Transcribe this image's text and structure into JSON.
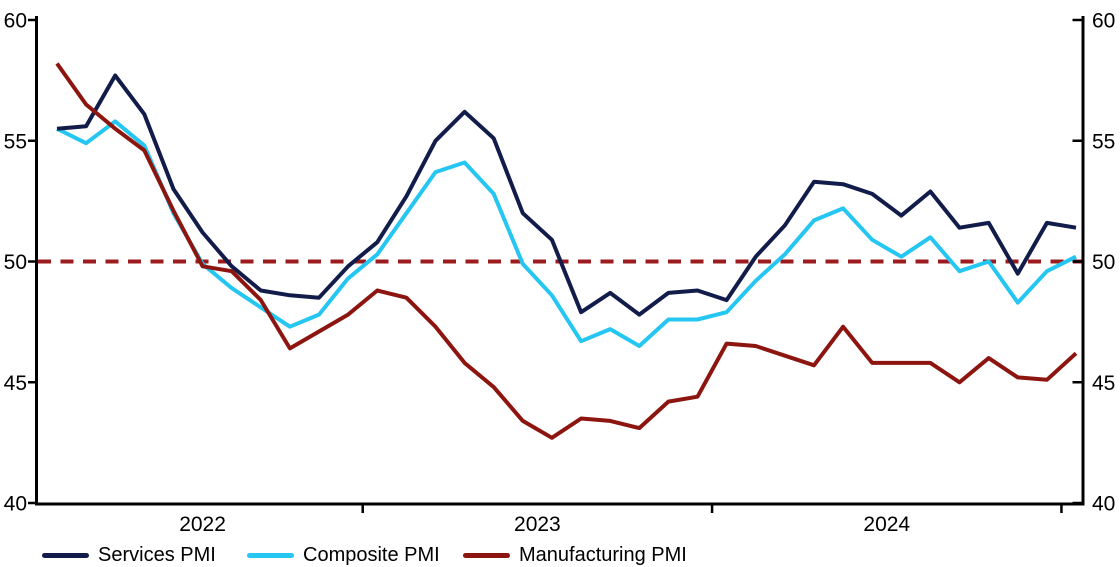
{
  "chart_data": {
    "type": "line",
    "title": "",
    "x_months": [
      "2022-02",
      "2022-03",
      "2022-04",
      "2022-05",
      "2022-06",
      "2022-07",
      "2022-08",
      "2022-09",
      "2022-10",
      "2022-11",
      "2022-12",
      "2023-01",
      "2023-02",
      "2023-03",
      "2023-04",
      "2023-05",
      "2023-06",
      "2023-07",
      "2023-08",
      "2023-09",
      "2023-10",
      "2023-11",
      "2023-12",
      "2024-01",
      "2024-02",
      "2024-03",
      "2024-04",
      "2024-05",
      "2024-06",
      "2024-07",
      "2024-08",
      "2024-09",
      "2024-10",
      "2024-11",
      "2024-12",
      "2025-01"
    ],
    "x_axis_year_labels": [
      "2022",
      "2023",
      "2024"
    ],
    "series": [
      {
        "name": "Services PMI",
        "color": "#121c4a",
        "values": [
          55.5,
          55.6,
          57.7,
          56.1,
          53.0,
          51.2,
          49.8,
          48.8,
          48.6,
          48.5,
          49.8,
          50.8,
          52.7,
          55.0,
          56.2,
          55.1,
          52.0,
          50.9,
          47.9,
          48.7,
          47.8,
          48.7,
          48.8,
          48.4,
          50.2,
          51.5,
          53.3,
          53.2,
          52.8,
          51.9,
          52.9,
          51.4,
          51.6,
          49.5,
          51.6,
          51.4
        ]
      },
      {
        "name": "Composite PMI",
        "color": "#25c6f2",
        "values": [
          55.5,
          54.9,
          55.8,
          54.8,
          52.0,
          49.9,
          48.9,
          48.1,
          47.3,
          47.8,
          49.3,
          50.3,
          52.0,
          53.7,
          54.1,
          52.8,
          49.9,
          48.6,
          46.7,
          47.2,
          46.5,
          47.6,
          47.6,
          47.9,
          49.2,
          50.3,
          51.7,
          52.2,
          50.9,
          50.2,
          51.0,
          49.6,
          50.0,
          48.3,
          49.6,
          50.2
        ]
      },
      {
        "name": "Manufacturing PMI",
        "color": "#8d1510",
        "values": [
          58.2,
          56.5,
          55.5,
          54.6,
          52.1,
          49.8,
          49.6,
          48.4,
          46.4,
          47.1,
          47.8,
          48.8,
          48.5,
          47.3,
          45.8,
          44.8,
          43.4,
          42.7,
          43.5,
          43.4,
          43.1,
          44.2,
          44.4,
          46.6,
          46.5,
          46.1,
          45.7,
          47.3,
          45.8,
          45.8,
          45.8,
          45.0,
          46.0,
          45.2,
          45.1,
          46.2
        ]
      }
    ],
    "reference_line": {
      "value": 50,
      "color": "#9c1b1c",
      "style": "dashed"
    },
    "y_axis": {
      "min": 40,
      "max": 60,
      "ticks": [
        40,
        45,
        50,
        55,
        60
      ],
      "sides": [
        "left",
        "right"
      ]
    },
    "x_axis": {
      "tick_style": "year-boundaries"
    },
    "grid": false,
    "legend_position": "bottom",
    "background": "#ffffff",
    "axis_color": "#000000"
  }
}
